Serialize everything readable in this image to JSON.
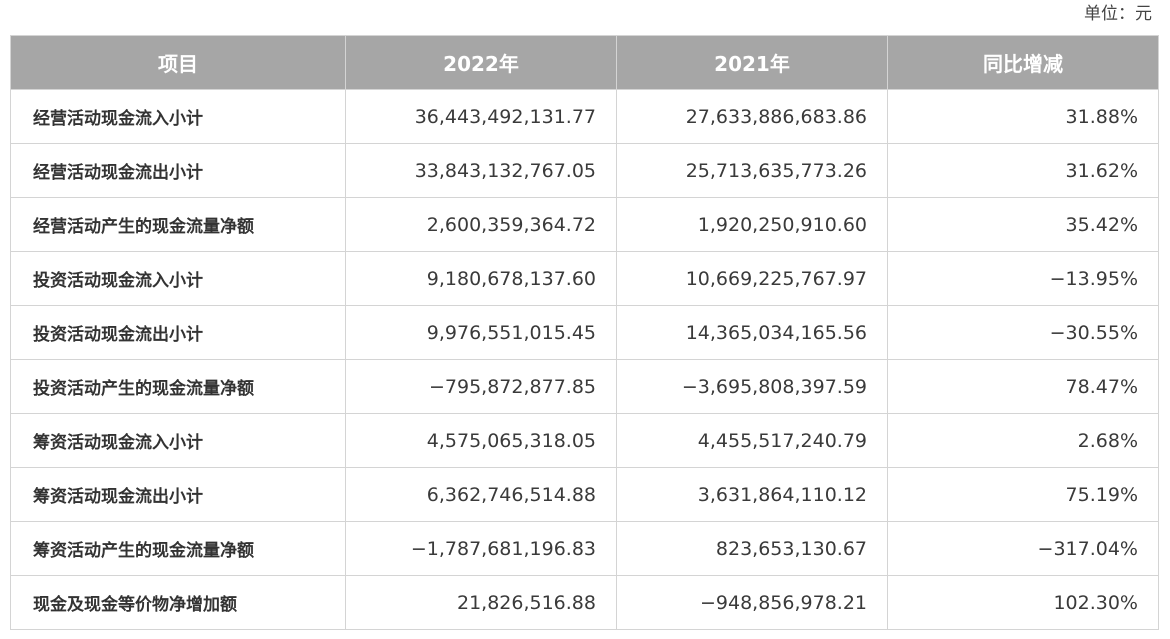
{
  "unit": "单位：元",
  "table": {
    "headers": [
      "项目",
      "2022年",
      "2021年",
      "同比增减"
    ],
    "rows": [
      {
        "item": "经营活动现金流入小计",
        "y2022": "36,443,492,131.77",
        "y2021": "27,633,886,683.86",
        "change": "31.88%"
      },
      {
        "item": "经营活动现金流出小计",
        "y2022": "33,843,132,767.05",
        "y2021": "25,713,635,773.26",
        "change": "31.62%"
      },
      {
        "item": "经营活动产生的现金流量净额",
        "y2022": "2,600,359,364.72",
        "y2021": "1,920,250,910.60",
        "change": "35.42%"
      },
      {
        "item": "投资活动现金流入小计",
        "y2022": "9,180,678,137.60",
        "y2021": "10,669,225,767.97",
        "change": "−13.95%"
      },
      {
        "item": "投资活动现金流出小计",
        "y2022": "9,976,551,015.45",
        "y2021": "14,365,034,165.56",
        "change": "−30.55%"
      },
      {
        "item": "投资活动产生的现金流量净额",
        "y2022": "−795,872,877.85",
        "y2021": "−3,695,808,397.59",
        "change": "78.47%"
      },
      {
        "item": "筹资活动现金流入小计",
        "y2022": "4,575,065,318.05",
        "y2021": "4,455,517,240.79",
        "change": "2.68%"
      },
      {
        "item": "筹资活动现金流出小计",
        "y2022": "6,362,746,514.88",
        "y2021": "3,631,864,110.12",
        "change": "75.19%"
      },
      {
        "item": "筹资活动产生的现金流量净额",
        "y2022": "−1,787,681,196.83",
        "y2021": "823,653,130.67",
        "change": "−317.04%"
      },
      {
        "item": "现金及现金等价物净增加额",
        "y2022": "21,826,516.88",
        "y2021": "−948,856,978.21",
        "change": "102.30%"
      }
    ]
  }
}
